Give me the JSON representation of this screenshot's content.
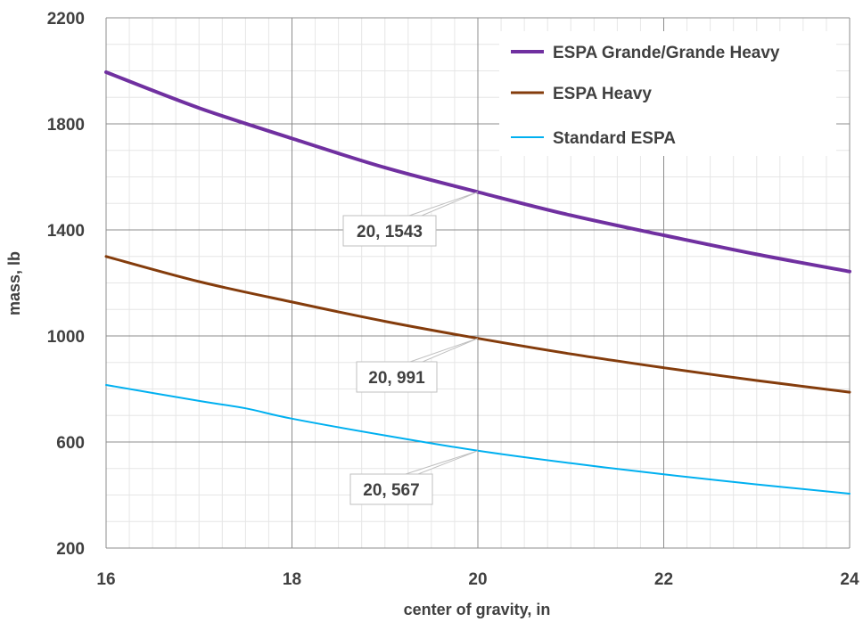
{
  "chart_data": {
    "type": "line",
    "title": "",
    "xlabel": "center of gravity, in",
    "ylabel": "mass, lb",
    "xlim": [
      16,
      24
    ],
    "ylim": [
      200,
      2200
    ],
    "x_ticks": [
      16,
      18,
      20,
      22,
      24
    ],
    "x_tick_labels": [
      "16",
      "18",
      "20",
      "22",
      "24"
    ],
    "y_ticks": [
      200,
      600,
      1000,
      1400,
      1800,
      2200
    ],
    "y_tick_labels": [
      "200",
      "600",
      "1000",
      "1400",
      "1800",
      "2200"
    ],
    "grid": true,
    "legend_position": "top-right",
    "series": [
      {
        "name": "ESPA Grande/Grande Heavy",
        "color": "#7030a0",
        "x": [
          16,
          17,
          18,
          19,
          20,
          21,
          22,
          23,
          24
        ],
        "y": [
          1995,
          1860,
          1745,
          1635,
          1543,
          1455,
          1380,
          1308,
          1243
        ]
      },
      {
        "name": "ESPA Heavy",
        "color": "#843c0c",
        "x": [
          16,
          17,
          18,
          19,
          20,
          21,
          22,
          23,
          24
        ],
        "y": [
          1300,
          1205,
          1128,
          1055,
          991,
          932,
          880,
          832,
          788
        ]
      },
      {
        "name": "Standard ESPA",
        "color": "#00b0f0",
        "x": [
          16,
          17,
          17.5,
          18,
          19,
          20,
          21,
          22,
          23,
          24
        ],
        "y": [
          815,
          755,
          727,
          688,
          625,
          567,
          520,
          478,
          440,
          405
        ]
      }
    ],
    "annotations": [
      {
        "text": "20, 1543",
        "x": 20,
        "y": 1543
      },
      {
        "text": "20, 991",
        "x": 20,
        "y": 991
      },
      {
        "text": "20, 567",
        "x": 20,
        "y": 567
      }
    ]
  }
}
